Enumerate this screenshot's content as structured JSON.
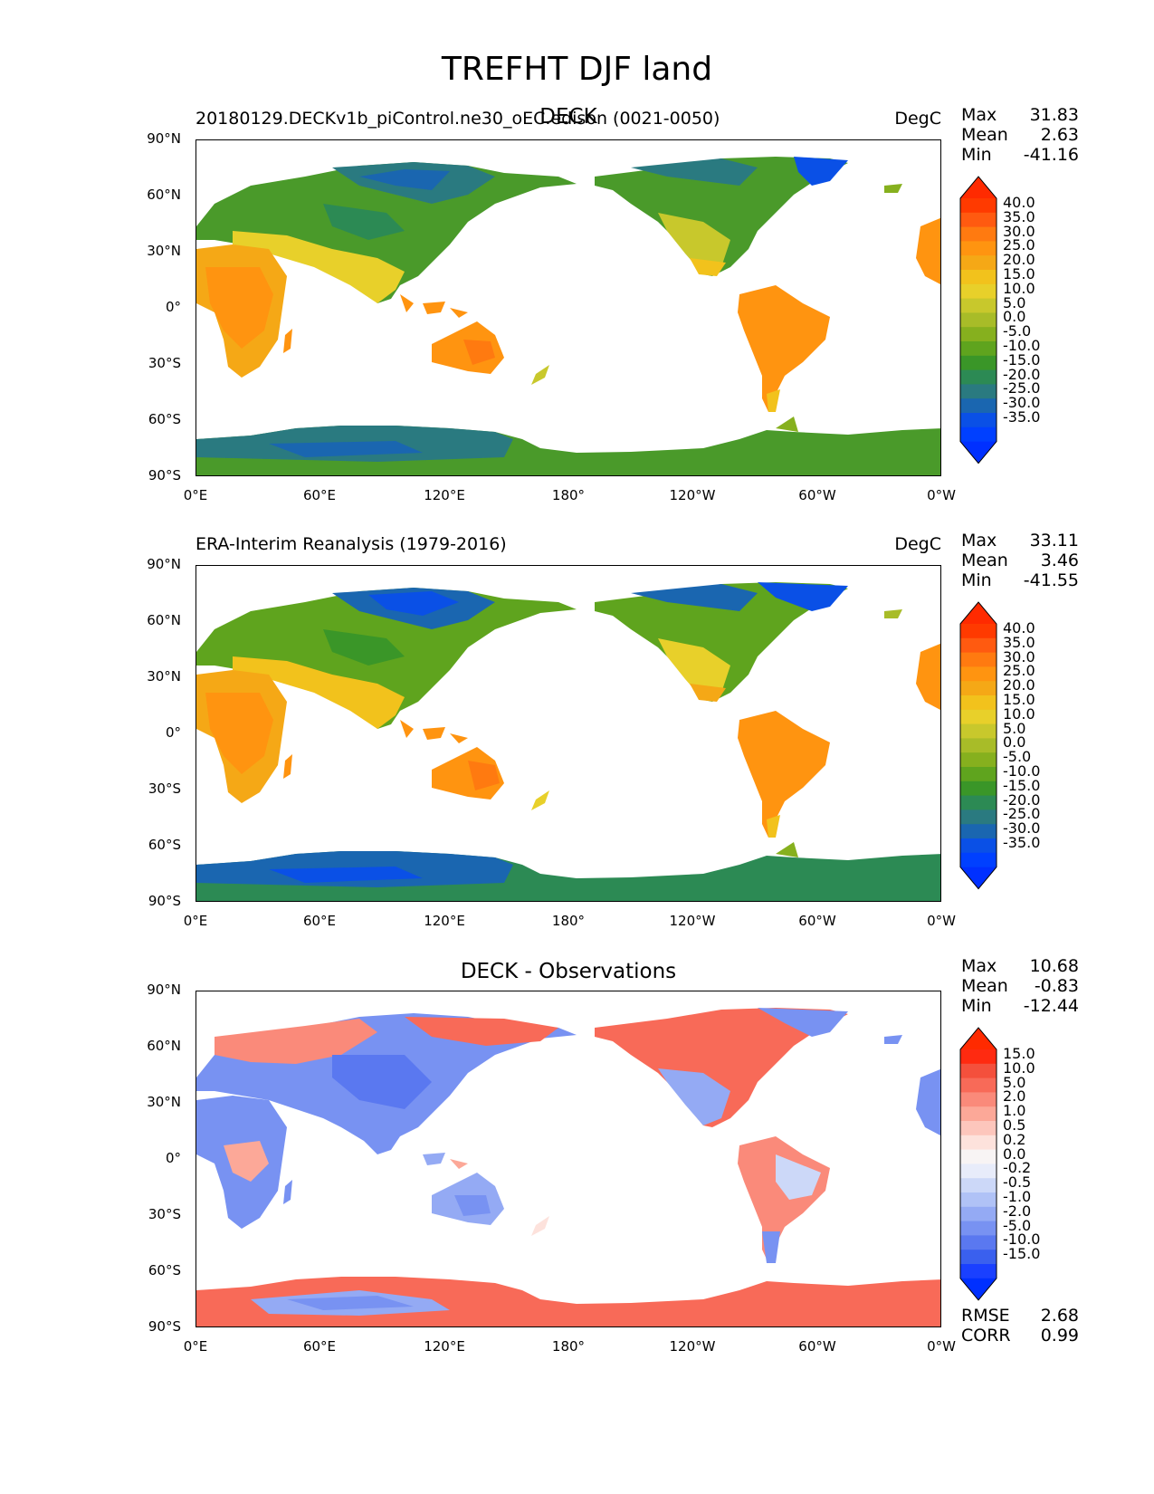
{
  "figure_title": "TREFHT DJF land",
  "panels": [
    {
      "title_left": "20180129.DECKv1b_piControl.ne30_oEC.edison (0021-0050)",
      "title_center": "DECK",
      "units": "DegC",
      "stats": {
        "max_label": "Max",
        "max": "31.83",
        "mean_label": "Mean",
        "mean": "2.63",
        "min_label": "Min",
        "min": "-41.16"
      }
    },
    {
      "title_left": "ERA-Interim Reanalysis (1979-2016)",
      "title_center": "",
      "units": "DegC",
      "stats": {
        "max_label": "Max",
        "max": "33.11",
        "mean_label": "Mean",
        "mean": "3.46",
        "min_label": "Min",
        "min": "-41.55"
      }
    },
    {
      "title_left": "",
      "title_center": "DECK - Observations",
      "units": "",
      "stats": {
        "max_label": "Max",
        "max": "10.68",
        "mean_label": "Mean",
        "mean": "-0.83",
        "min_label": "Min",
        "min": "-12.44"
      },
      "extra_stats": {
        "rmse_label": "RMSE",
        "rmse": "2.68",
        "corr_label": "CORR",
        "corr": "0.99"
      }
    }
  ],
  "axes": {
    "lat_ticks": [
      "90°N",
      "60°N",
      "30°N",
      "0°",
      "30°S",
      "60°S",
      "90°S"
    ],
    "lon_ticks": [
      "0°E",
      "60°E",
      "120°E",
      "180°",
      "120°W",
      "60°W",
      "0°W"
    ]
  },
  "colorbars": {
    "temperature": {
      "labels": [
        "40.0",
        "35.0",
        "30.0",
        "25.0",
        "20.0",
        "15.0",
        "10.0",
        "5.0",
        "0.0",
        "-5.0",
        "-10.0",
        "-15.0",
        "-20.0",
        "-25.0",
        "-30.0",
        "-35.0"
      ],
      "colors": [
        "#ff3a00",
        "#ff5a10",
        "#ff7a10",
        "#ff9410",
        "#f5a816",
        "#f2c21c",
        "#e8d02a",
        "#c8c82c",
        "#a8bc28",
        "#86b01e",
        "#5fa41e",
        "#3a9628",
        "#2c8a54",
        "#2a7a80",
        "#1a66b0",
        "#0a50e6",
        "#0040ff"
      ],
      "over": "#ff2a00",
      "under": "#0030ff"
    },
    "difference": {
      "labels": [
        "15.0",
        "10.0",
        "5.0",
        "2.0",
        "1.0",
        "0.5",
        "0.2",
        "0.0",
        "-0.2",
        "-0.5",
        "-1.0",
        "-2.0",
        "-5.0",
        "-10.0",
        "-15.0"
      ],
      "colors": [
        "#ff2a10",
        "#f4503c",
        "#f86a58",
        "#fa8a7a",
        "#fca898",
        "#fdc6bc",
        "#fde2dc",
        "#f8f4f4",
        "#e8ecfa",
        "#ccd8f8",
        "#b0c2f6",
        "#94aaf4",
        "#7892f2",
        "#5a78f0",
        "#3a60ee",
        "#1a40ff"
      ],
      "over": "#ff2a00",
      "under": "#0030ff"
    }
  }
}
